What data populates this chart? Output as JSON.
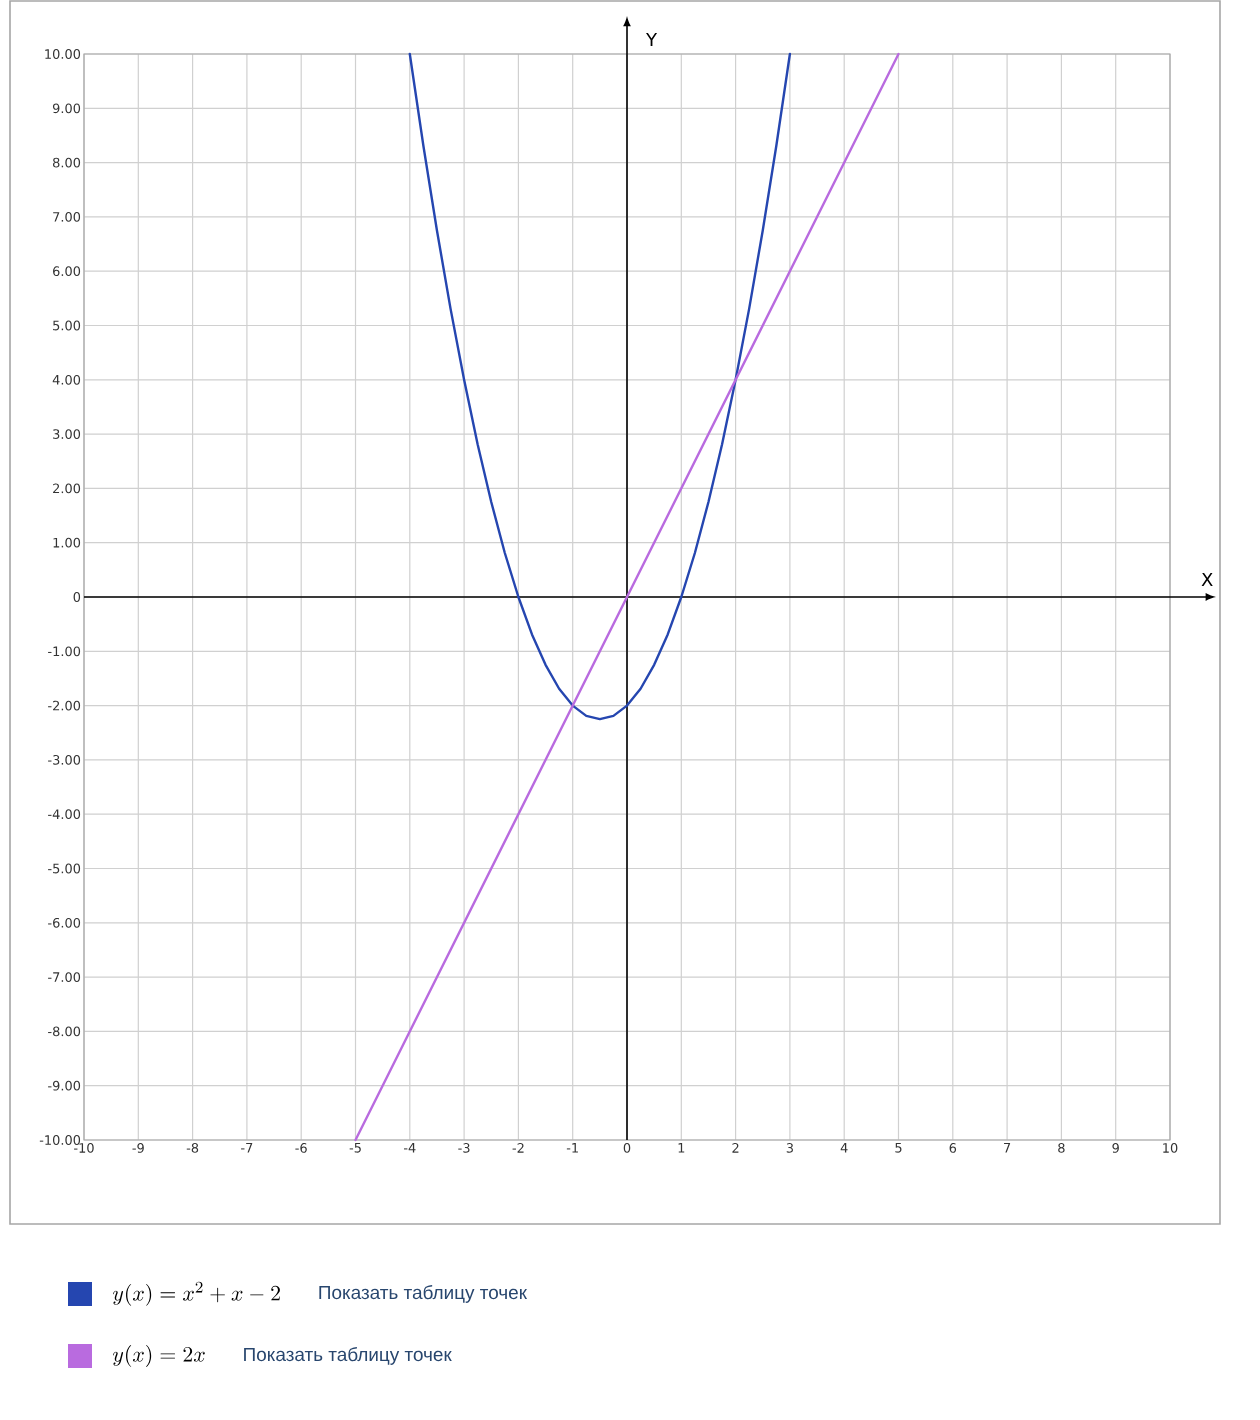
{
  "chart_data": {
    "type": "line",
    "xlabel": "X",
    "ylabel": "Y",
    "xlim": [
      -10,
      10
    ],
    "ylim": [
      -10,
      10
    ],
    "xticks": [
      -10,
      -9,
      -8,
      -7,
      -6,
      -5,
      -4,
      -3,
      -2,
      -1,
      0,
      1,
      2,
      3,
      4,
      5,
      6,
      7,
      8,
      9,
      10
    ],
    "yticks": [
      {
        "value": -10,
        "label": "-10.00"
      },
      {
        "value": -9,
        "label": "-9.00"
      },
      {
        "value": -8,
        "label": "-8.00"
      },
      {
        "value": -7,
        "label": "-7.00"
      },
      {
        "value": -6,
        "label": "-6.00"
      },
      {
        "value": -5,
        "label": "-5.00"
      },
      {
        "value": -4,
        "label": "-4.00"
      },
      {
        "value": -3,
        "label": "-3.00"
      },
      {
        "value": -2,
        "label": "-2.00"
      },
      {
        "value": -1,
        "label": "-1.00"
      },
      {
        "value": 0,
        "label": "0"
      },
      {
        "value": 1,
        "label": "1.00"
      },
      {
        "value": 2,
        "label": "2.00"
      },
      {
        "value": 3,
        "label": "3.00"
      },
      {
        "value": 4,
        "label": "4.00"
      },
      {
        "value": 5,
        "label": "5.00"
      },
      {
        "value": 6,
        "label": "6.00"
      },
      {
        "value": 7,
        "label": "7.00"
      },
      {
        "value": 8,
        "label": "8.00"
      },
      {
        "value": 9,
        "label": "9.00"
      },
      {
        "value": 10,
        "label": "10.00"
      }
    ],
    "grid": true,
    "legend": "bottom",
    "line_style": "solid",
    "series": [
      {
        "name": "y(x) = x^2 + x - 2",
        "color": "#2546b0",
        "x": [
          -4,
          -3.75,
          -3.5,
          -3.25,
          -3,
          -2.75,
          -2.5,
          -2.25,
          -2,
          -1.75,
          -1.5,
          -1.25,
          -1,
          -0.75,
          -0.5,
          -0.25,
          0,
          0.25,
          0.5,
          0.75,
          1,
          1.25,
          1.5,
          1.75,
          2,
          2.25,
          2.5,
          2.75,
          3
        ],
        "values": [
          10,
          8.31,
          6.75,
          5.31,
          4,
          2.81,
          1.75,
          0.81,
          0,
          -0.69,
          -1.25,
          -1.69,
          -2,
          -2.19,
          -2.25,
          -2.19,
          -2,
          -1.69,
          -1.25,
          -0.69,
          0,
          0.81,
          1.75,
          2.81,
          4,
          5.31,
          6.75,
          8.31,
          10
        ]
      },
      {
        "name": "y(x) = 2x",
        "color": "#b96bdf",
        "x": [
          -5,
          5
        ],
        "values": [
          -10,
          10
        ]
      }
    ],
    "annotations": [
      "Показать таблицу точек",
      "Показать таблицу точек"
    ]
  }
}
